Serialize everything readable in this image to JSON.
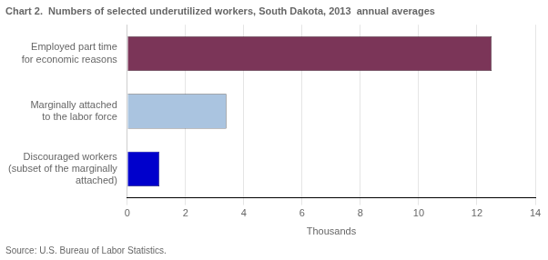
{
  "chart_data": {
    "type": "bar",
    "orientation": "horizontal",
    "title": "Chart 2.  Numbers of selected underutilized workers, South Dakota, 2013  annual averages",
    "categories": [
      "Discouraged workers\n(subset of the marginally\n    attached)",
      "Marginally attached\nto the labor force",
      "Employed part time\nfor economic reasons"
    ],
    "values": [
      1.1,
      3.4,
      12.5
    ],
    "colors": [
      "#0000cc",
      "#aac4e0",
      "#7b3558"
    ],
    "xlim": [
      0,
      14
    ],
    "xticks": [
      0,
      2,
      4,
      6,
      8,
      10,
      12,
      14
    ],
    "xlabel": "Thousands",
    "annotations": [
      "Source: U.S. Bureau of Labor Statistics."
    ],
    "grid": true
  }
}
